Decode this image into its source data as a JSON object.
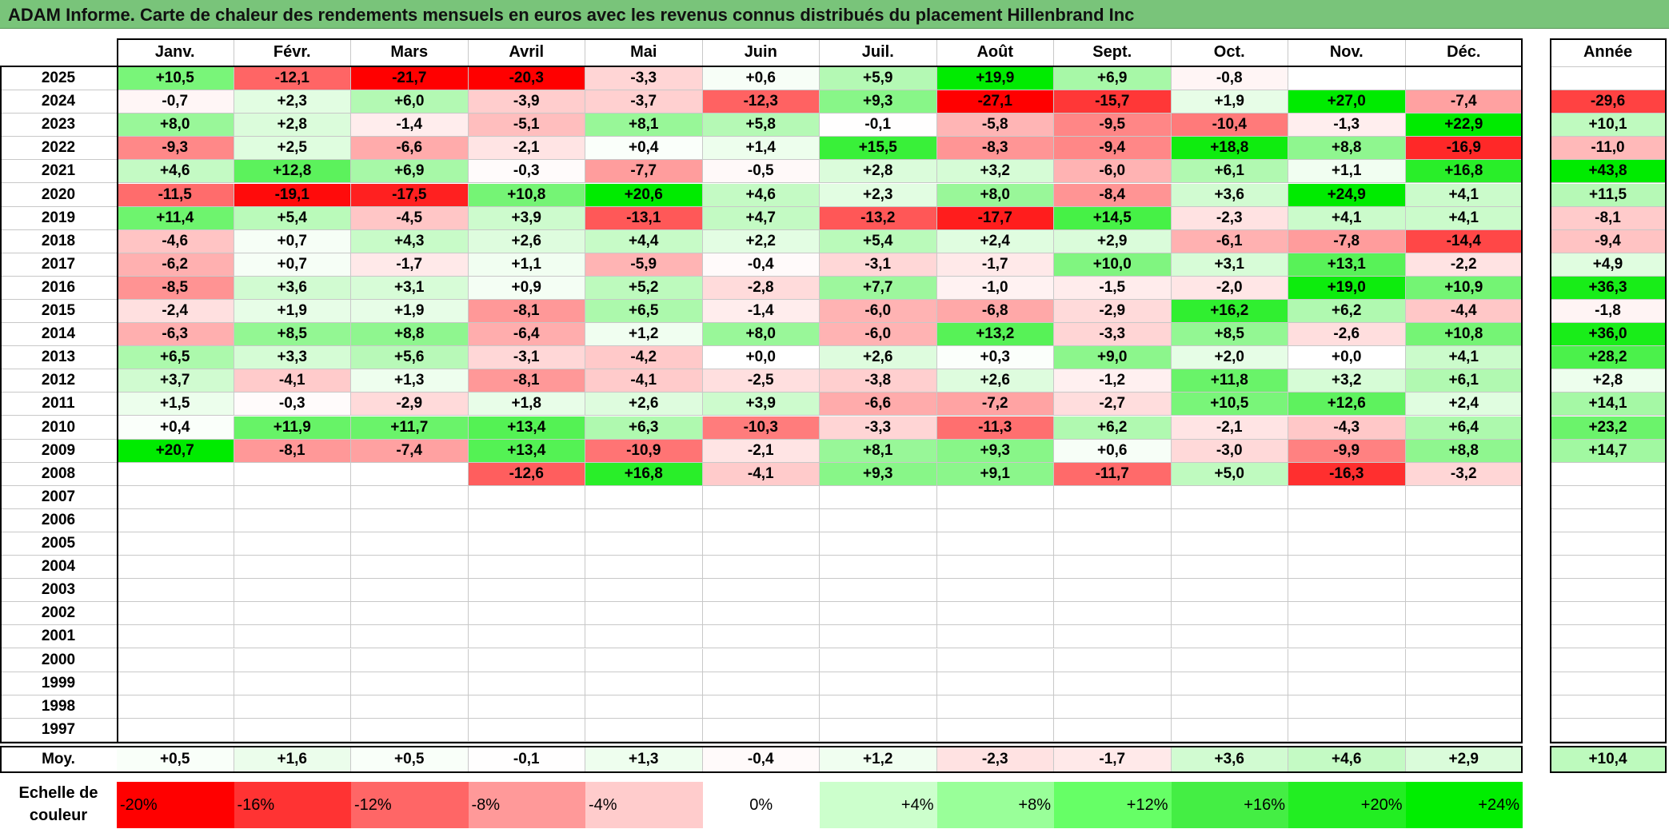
{
  "title": "ADAM Informe. Carte de chaleur des rendements mensuels en euros avec les revenus connus distribués du placement Hillenbrand Inc",
  "chart_data": {
    "type": "heatmap",
    "months": [
      "Janv.",
      "Févr.",
      "Mars",
      "Avril",
      "Mai",
      "Juin",
      "Juil.",
      "Août",
      "Sept.",
      "Oct.",
      "Nov.",
      "Déc."
    ],
    "annual_header": "Année",
    "rows": [
      {
        "year": "2025",
        "values": [
          "+10,5",
          "-12,1",
          "-21,7",
          "-20,3",
          "-3,3",
          "+0,6",
          "+5,9",
          "+19,9",
          "+6,9",
          "-0,8",
          "",
          ""
        ],
        "annual": ""
      },
      {
        "year": "2024",
        "values": [
          "-0,7",
          "+2,3",
          "+6,0",
          "-3,9",
          "-3,7",
          "-12,3",
          "+9,3",
          "-27,1",
          "-15,7",
          "+1,9",
          "+27,0",
          "-7,4"
        ],
        "annual": "-29,6"
      },
      {
        "year": "2023",
        "values": [
          "+8,0",
          "+2,8",
          "-1,4",
          "-5,1",
          "+8,1",
          "+5,8",
          "-0,1",
          "-5,8",
          "-9,5",
          "-10,4",
          "-1,3",
          "+22,9"
        ],
        "annual": "+10,1"
      },
      {
        "year": "2022",
        "values": [
          "-9,3",
          "+2,5",
          "-6,6",
          "-2,1",
          "+0,4",
          "+1,4",
          "+15,5",
          "-8,3",
          "-9,4",
          "+18,8",
          "+8,8",
          "-16,9"
        ],
        "annual": "-11,0"
      },
      {
        "year": "2021",
        "values": [
          "+4,6",
          "+12,8",
          "+6,9",
          "-0,3",
          "-7,7",
          "-0,5",
          "+2,8",
          "+3,2",
          "-6,0",
          "+6,1",
          "+1,1",
          "+16,8"
        ],
        "annual": "+43,8"
      },
      {
        "year": "2020",
        "values": [
          "-11,5",
          "-19,1",
          "-17,5",
          "+10,8",
          "+20,6",
          "+4,6",
          "+2,3",
          "+8,0",
          "-8,4",
          "+3,6",
          "+24,9",
          "+4,1"
        ],
        "annual": "+11,5"
      },
      {
        "year": "2019",
        "values": [
          "+11,4",
          "+5,4",
          "-4,5",
          "+3,9",
          "-13,1",
          "+4,7",
          "-13,2",
          "-17,7",
          "+14,5",
          "-2,3",
          "+4,1",
          "+4,1"
        ],
        "annual": "-8,1"
      },
      {
        "year": "2018",
        "values": [
          "-4,6",
          "+0,7",
          "+4,3",
          "+2,6",
          "+4,4",
          "+2,2",
          "+5,4",
          "+2,4",
          "+2,9",
          "-6,1",
          "-7,8",
          "-14,4"
        ],
        "annual": "-9,4"
      },
      {
        "year": "2017",
        "values": [
          "-6,2",
          "+0,7",
          "-1,7",
          "+1,1",
          "-5,9",
          "-0,4",
          "-3,1",
          "-1,7",
          "+10,0",
          "+3,1",
          "+13,1",
          "-2,2"
        ],
        "annual": "+4,9"
      },
      {
        "year": "2016",
        "values": [
          "-8,5",
          "+3,6",
          "+3,1",
          "+0,9",
          "+5,2",
          "-2,8",
          "+7,7",
          "-1,0",
          "-1,5",
          "-2,0",
          "+19,0",
          "+10,9"
        ],
        "annual": "+36,3"
      },
      {
        "year": "2015",
        "values": [
          "-2,4",
          "+1,9",
          "+1,9",
          "-8,1",
          "+6,5",
          "-1,4",
          "-6,0",
          "-6,8",
          "-2,9",
          "+16,2",
          "+6,2",
          "-4,4"
        ],
        "annual": "-1,8"
      },
      {
        "year": "2014",
        "values": [
          "-6,3",
          "+8,5",
          "+8,8",
          "-6,4",
          "+1,2",
          "+8,0",
          "-6,0",
          "+13,2",
          "-3,3",
          "+8,5",
          "-2,6",
          "+10,8"
        ],
        "annual": "+36,0"
      },
      {
        "year": "2013",
        "values": [
          "+6,5",
          "+3,3",
          "+5,6",
          "-3,1",
          "-4,2",
          "+0,0",
          "+2,6",
          "+0,3",
          "+9,0",
          "+2,0",
          "+0,0",
          "+4,1"
        ],
        "annual": "+28,2"
      },
      {
        "year": "2012",
        "values": [
          "+3,7",
          "-4,1",
          "+1,3",
          "-8,1",
          "-4,1",
          "-2,5",
          "-3,8",
          "+2,6",
          "-1,2",
          "+11,8",
          "+3,2",
          "+6,1"
        ],
        "annual": "+2,8"
      },
      {
        "year": "2011",
        "values": [
          "+1,5",
          "-0,3",
          "-2,9",
          "+1,8",
          "+2,6",
          "+3,9",
          "-6,6",
          "-7,2",
          "-2,7",
          "+10,5",
          "+12,6",
          "+2,4"
        ],
        "annual": "+14,1"
      },
      {
        "year": "2010",
        "values": [
          "+0,4",
          "+11,9",
          "+11,7",
          "+13,4",
          "+6,3",
          "-10,3",
          "-3,3",
          "-11,3",
          "+6,2",
          "-2,1",
          "-4,3",
          "+6,4"
        ],
        "annual": "+23,2"
      },
      {
        "year": "2009",
        "values": [
          "+20,7",
          "-8,1",
          "-7,4",
          "+13,4",
          "-10,9",
          "-2,1",
          "+8,1",
          "+9,3",
          "+0,6",
          "-3,0",
          "-9,9",
          "+8,8"
        ],
        "annual": "+14,7"
      },
      {
        "year": "2008",
        "values": [
          "",
          "",
          "",
          "-12,6",
          "+16,8",
          "-4,1",
          "+9,3",
          "+9,1",
          "-11,7",
          "+5,0",
          "-16,3",
          "-3,2"
        ],
        "annual": ""
      },
      {
        "year": "2007",
        "values": [
          "",
          "",
          "",
          "",
          "",
          "",
          "",
          "",
          "",
          "",
          "",
          ""
        ],
        "annual": ""
      },
      {
        "year": "2006",
        "values": [
          "",
          "",
          "",
          "",
          "",
          "",
          "",
          "",
          "",
          "",
          "",
          ""
        ],
        "annual": ""
      },
      {
        "year": "2005",
        "values": [
          "",
          "",
          "",
          "",
          "",
          "",
          "",
          "",
          "",
          "",
          "",
          ""
        ],
        "annual": ""
      },
      {
        "year": "2004",
        "values": [
          "",
          "",
          "",
          "",
          "",
          "",
          "",
          "",
          "",
          "",
          "",
          ""
        ],
        "annual": ""
      },
      {
        "year": "2003",
        "values": [
          "",
          "",
          "",
          "",
          "",
          "",
          "",
          "",
          "",
          "",
          "",
          ""
        ],
        "annual": ""
      },
      {
        "year": "2002",
        "values": [
          "",
          "",
          "",
          "",
          "",
          "",
          "",
          "",
          "",
          "",
          "",
          ""
        ],
        "annual": ""
      },
      {
        "year": "2001",
        "values": [
          "",
          "",
          "",
          "",
          "",
          "",
          "",
          "",
          "",
          "",
          "",
          ""
        ],
        "annual": ""
      },
      {
        "year": "2000",
        "values": [
          "",
          "",
          "",
          "",
          "",
          "",
          "",
          "",
          "",
          "",
          "",
          ""
        ],
        "annual": ""
      },
      {
        "year": "1999",
        "values": [
          "",
          "",
          "",
          "",
          "",
          "",
          "",
          "",
          "",
          "",
          "",
          ""
        ],
        "annual": ""
      },
      {
        "year": "1998",
        "values": [
          "",
          "",
          "",
          "",
          "",
          "",
          "",
          "",
          "",
          "",
          "",
          ""
        ],
        "annual": ""
      },
      {
        "year": "1997",
        "values": [
          "",
          "",
          "",
          "",
          "",
          "",
          "",
          "",
          "",
          "",
          "",
          ""
        ],
        "annual": ""
      }
    ],
    "average": {
      "label": "Moy.",
      "values": [
        "+0,5",
        "+1,6",
        "+0,5",
        "-0,1",
        "+1,3",
        "-0,4",
        "+1,2",
        "-2,3",
        "-1,7",
        "+3,6",
        "+4,6",
        "+2,9"
      ],
      "annual": "+10,4"
    },
    "color_scale": {
      "label": "Echelle de couleur",
      "stops": [
        {
          "label": "-20%",
          "color": "#ff0000"
        },
        {
          "label": "-16%",
          "color": "#ff3333"
        },
        {
          "label": "-12%",
          "color": "#ff6666"
        },
        {
          "label": "-8%",
          "color": "#ff9999"
        },
        {
          "label": "-4%",
          "color": "#ffcccc"
        },
        {
          "label": "0%",
          "color": "#ffffff"
        },
        {
          "label": "+4%",
          "color": "#ccffcc"
        },
        {
          "label": "+8%",
          "color": "#99ff99"
        },
        {
          "label": "+12%",
          "color": "#66ff66"
        },
        {
          "label": "+16%",
          "color": "#44ee44"
        },
        {
          "label": "+20%",
          "color": "#22ee22"
        },
        {
          "label": "+24%",
          "color": "#00ee00"
        }
      ]
    }
  }
}
